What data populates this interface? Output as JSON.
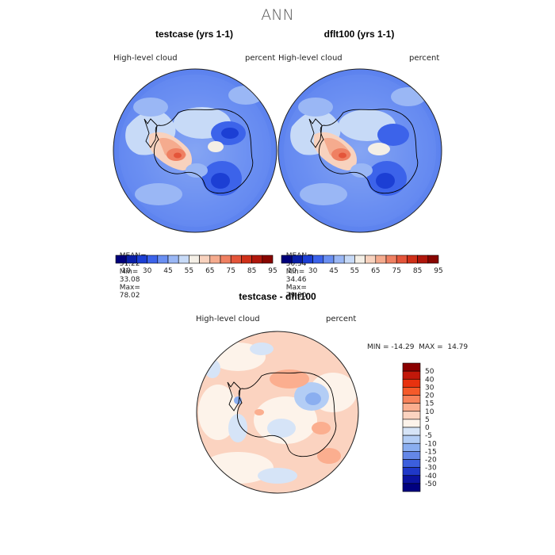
{
  "figure_title": "ANN",
  "panels": [
    {
      "title": "testcase (yrs 1-1)",
      "variable": "High-level  cloud",
      "units": "percent",
      "stats": {
        "mean_label": "MEAN=",
        "mean": "51.22",
        "min_label": "Min=",
        "min": "33.08",
        "max_label": "Max=",
        "max": "78.02"
      }
    },
    {
      "title": "dflt100 (yrs 1-1)",
      "variable": "High-level  cloud",
      "units": "percent",
      "stats": {
        "mean_label": "MEAN=",
        "mean": "50.54",
        "min_label": "Min=",
        "min": "34.46",
        "max_label": "Max=",
        "max": "79.30"
      }
    }
  ],
  "colorbar_top": {
    "labels": [
      "10",
      "30",
      "45",
      "55",
      "65",
      "75",
      "85",
      "95"
    ],
    "colors": [
      "#00007a",
      "#0a1fa8",
      "#1c3fd4",
      "#3c63ea",
      "#6a8ff2",
      "#9ab7f5",
      "#c7daf7",
      "#f4efe6",
      "#f8d2be",
      "#f5ab8e",
      "#ef8062",
      "#e4553a",
      "#cf3019",
      "#b0170c",
      "#880600"
    ]
  },
  "diff_panel": {
    "title": "testcase - dflt100",
    "variable": "High-level  cloud",
    "units": "percent",
    "minmax_text": "MIN = -14.29  MAX =  14.79"
  },
  "colorbar_diff": {
    "labels": [
      "50",
      "40",
      "30",
      "20",
      "15",
      "10",
      "5",
      "0",
      "-5",
      "-10",
      "-15",
      "-20",
      "-30",
      "-40",
      "-50"
    ],
    "colors": [
      "#8b0000",
      "#c2180a",
      "#e8320f",
      "#f55a2a",
      "#f8825a",
      "#fbae8f",
      "#fbd3c0",
      "#fdf3ea",
      "#d6e4f7",
      "#b3cdf5",
      "#8aaef0",
      "#6487e8",
      "#3c5fdd",
      "#1f38c8",
      "#0b13a0",
      "#000080"
    ]
  }
}
